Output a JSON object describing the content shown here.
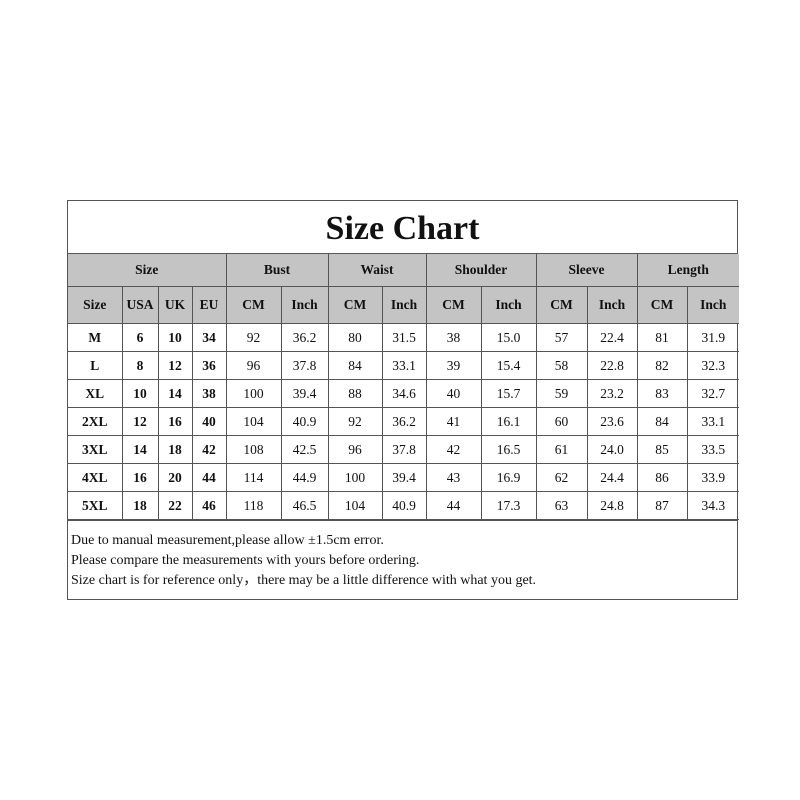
{
  "title": "Size Chart",
  "group_headers": [
    "Size",
    "Bust",
    "Waist",
    "Shoulder",
    "Sleeve",
    "Length"
  ],
  "sub_headers": [
    "Size",
    "USA",
    "UK",
    "EU",
    "CM",
    "Inch",
    "CM",
    "Inch",
    "CM",
    "Inch",
    "CM",
    "Inch",
    "CM",
    "Inch"
  ],
  "rows": [
    [
      "M",
      "6",
      "10",
      "34",
      "92",
      "36.2",
      "80",
      "31.5",
      "38",
      "15.0",
      "57",
      "22.4",
      "81",
      "31.9"
    ],
    [
      "L",
      "8",
      "12",
      "36",
      "96",
      "37.8",
      "84",
      "33.1",
      "39",
      "15.4",
      "58",
      "22.8",
      "82",
      "32.3"
    ],
    [
      "XL",
      "10",
      "14",
      "38",
      "100",
      "39.4",
      "88",
      "34.6",
      "40",
      "15.7",
      "59",
      "23.2",
      "83",
      "32.7"
    ],
    [
      "2XL",
      "12",
      "16",
      "40",
      "104",
      "40.9",
      "92",
      "36.2",
      "41",
      "16.1",
      "60",
      "23.6",
      "84",
      "33.1"
    ],
    [
      "3XL",
      "14",
      "18",
      "42",
      "108",
      "42.5",
      "96",
      "37.8",
      "42",
      "16.5",
      "61",
      "24.0",
      "85",
      "33.5"
    ],
    [
      "4XL",
      "16",
      "20",
      "44",
      "114",
      "44.9",
      "100",
      "39.4",
      "43",
      "16.9",
      "62",
      "24.4",
      "86",
      "33.9"
    ],
    [
      "5XL",
      "18",
      "22",
      "46",
      "118",
      "46.5",
      "104",
      "40.9",
      "44",
      "17.3",
      "63",
      "24.8",
      "87",
      "34.3"
    ]
  ],
  "notes": [
    "Due to manual measurement,please allow ±1.5cm error.",
    "Please compare the measurements with yours before ordering.",
    "Size chart is for reference only，there may be a little difference with what you get."
  ],
  "colors": {
    "header_bg": "#c4c4c4",
    "border": "#555555"
  }
}
